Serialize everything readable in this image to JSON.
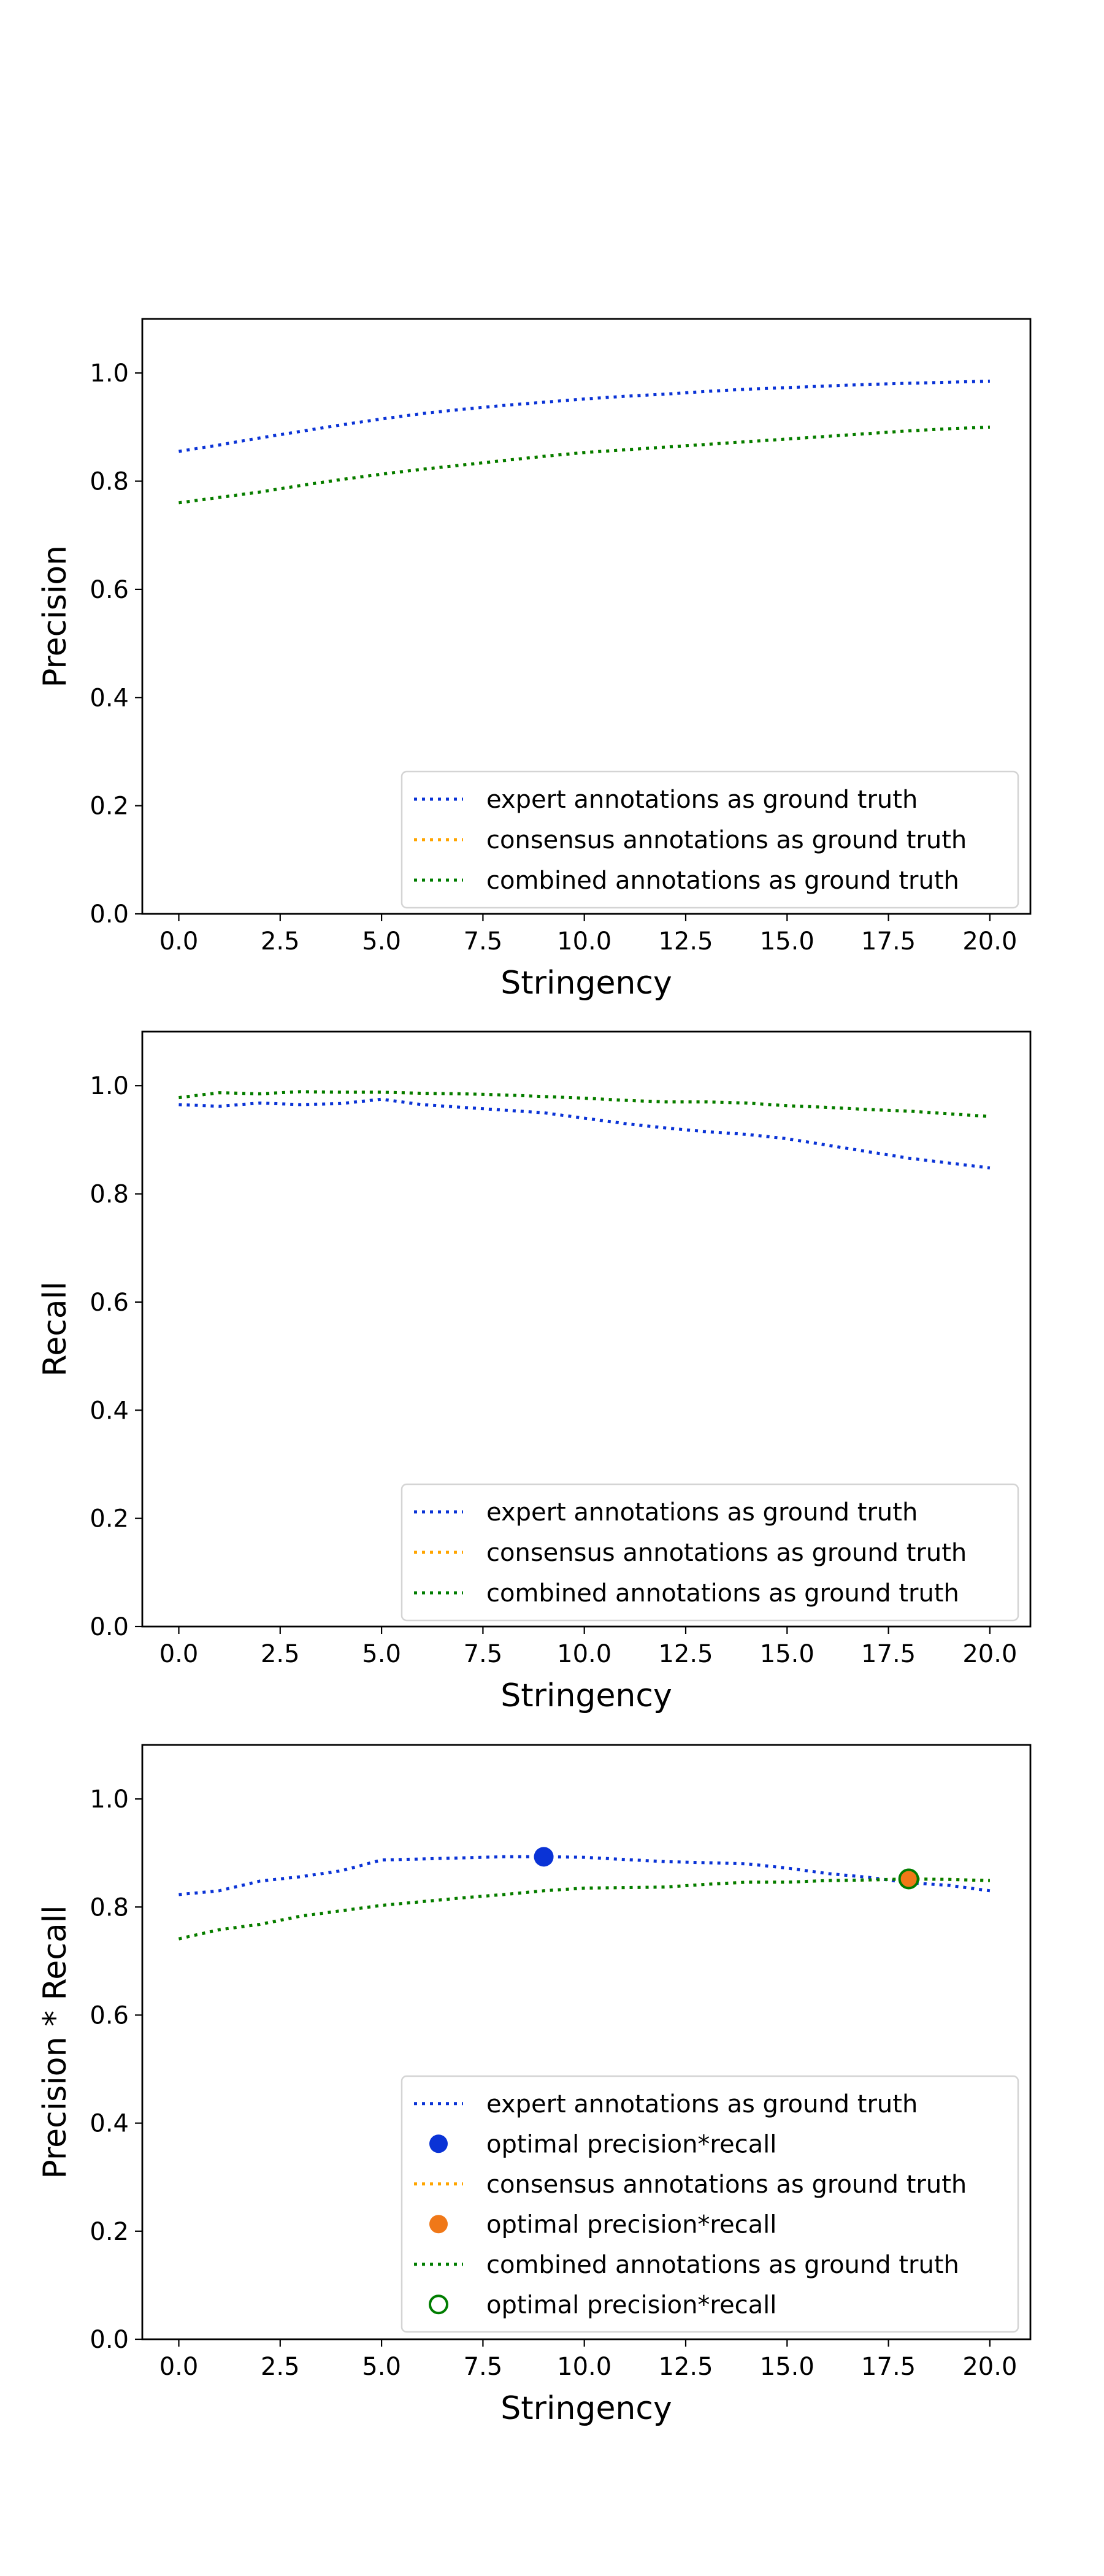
{
  "chart_data": [
    {
      "type": "line",
      "xlabel": "Stringency",
      "ylabel": "Precision",
      "xlim": [
        -0.9,
        21
      ],
      "ylim": [
        0,
        1.1
      ],
      "xticks": [
        "0.0",
        "2.5",
        "5.0",
        "7.5",
        "10.0",
        "12.5",
        "15.0",
        "17.5",
        "20.0"
      ],
      "yticks": [
        "0.0",
        "0.2",
        "0.4",
        "0.6",
        "0.8",
        "1.0"
      ],
      "grid": false,
      "legend_position": "lower-right",
      "x": [
        0,
        1,
        2,
        3,
        4,
        5,
        6,
        7,
        8,
        9,
        10,
        11,
        12,
        13,
        14,
        15,
        16,
        17,
        18,
        19,
        20
      ],
      "series": [
        {
          "name": "expert annotations as ground truth",
          "color": "#0a33d6",
          "style": "dotted",
          "values": [
            0.855,
            0.867,
            0.88,
            0.892,
            0.904,
            0.915,
            0.925,
            0.933,
            0.94,
            0.946,
            0.952,
            0.957,
            0.961,
            0.966,
            0.97,
            0.973,
            0.976,
            0.979,
            0.981,
            0.983,
            0.985
          ]
        },
        {
          "name": "consensus annotations as ground truth",
          "color": "#ffa500",
          "style": "dotted",
          "values": [
            0.76,
            0.77,
            0.78,
            0.792,
            0.803,
            0.813,
            0.822,
            0.83,
            0.838,
            0.846,
            0.853,
            0.858,
            0.863,
            0.868,
            0.873,
            0.878,
            0.883,
            0.888,
            0.893,
            0.897,
            0.9
          ]
        },
        {
          "name": "combined annotations as ground truth",
          "color": "#007d00",
          "style": "dotted",
          "values": [
            0.76,
            0.77,
            0.78,
            0.792,
            0.803,
            0.813,
            0.822,
            0.83,
            0.838,
            0.846,
            0.853,
            0.858,
            0.863,
            0.868,
            0.873,
            0.878,
            0.883,
            0.888,
            0.893,
            0.897,
            0.9
          ]
        }
      ]
    },
    {
      "type": "line",
      "xlabel": "Stringency",
      "ylabel": "Recall",
      "xlim": [
        -0.9,
        21
      ],
      "ylim": [
        0,
        1.1
      ],
      "xticks": [
        "0.0",
        "2.5",
        "5.0",
        "7.5",
        "10.0",
        "12.5",
        "15.0",
        "17.5",
        "20.0"
      ],
      "yticks": [
        "0.0",
        "0.2",
        "0.4",
        "0.6",
        "0.8",
        "1.0"
      ],
      "grid": false,
      "legend_position": "lower-right",
      "x": [
        0,
        1,
        2,
        3,
        4,
        5,
        6,
        7,
        8,
        9,
        10,
        11,
        12,
        13,
        14,
        15,
        16,
        17,
        18,
        19,
        20
      ],
      "series": [
        {
          "name": "expert annotations as ground truth",
          "color": "#0a33d6",
          "style": "dotted",
          "values": [
            0.965,
            0.962,
            0.968,
            0.965,
            0.967,
            0.975,
            0.965,
            0.96,
            0.955,
            0.95,
            0.94,
            0.93,
            0.922,
            0.915,
            0.91,
            0.902,
            0.89,
            0.878,
            0.866,
            0.857,
            0.848
          ]
        },
        {
          "name": "consensus annotations as ground truth",
          "color": "#ffa500",
          "style": "dotted",
          "values": [
            0.978,
            0.987,
            0.985,
            0.989,
            0.988,
            0.988,
            0.986,
            0.985,
            0.983,
            0.98,
            0.977,
            0.973,
            0.97,
            0.97,
            0.968,
            0.963,
            0.96,
            0.956,
            0.953,
            0.948,
            0.943
          ]
        },
        {
          "name": "combined annotations as ground truth",
          "color": "#007d00",
          "style": "dotted",
          "values": [
            0.978,
            0.987,
            0.985,
            0.989,
            0.988,
            0.988,
            0.986,
            0.985,
            0.983,
            0.98,
            0.977,
            0.973,
            0.97,
            0.97,
            0.968,
            0.963,
            0.96,
            0.956,
            0.953,
            0.948,
            0.943
          ]
        }
      ]
    },
    {
      "type": "line",
      "xlabel": "Stringency",
      "ylabel": "Precision * Recall",
      "xlim": [
        -0.9,
        21
      ],
      "ylim": [
        0,
        1.1
      ],
      "xticks": [
        "0.0",
        "2.5",
        "5.0",
        "7.5",
        "10.0",
        "12.5",
        "15.0",
        "17.5",
        "20.0"
      ],
      "yticks": [
        "0.0",
        "0.2",
        "0.4",
        "0.6",
        "0.8",
        "1.0"
      ],
      "grid": false,
      "legend_position": "lower-right",
      "x": [
        0,
        1,
        2,
        3,
        4,
        5,
        6,
        7,
        8,
        9,
        10,
        11,
        12,
        13,
        14,
        15,
        16,
        17,
        18,
        19,
        20
      ],
      "series": [
        {
          "name": "expert annotations as ground truth",
          "color": "#0a33d6",
          "style": "dotted",
          "values": [
            0.823,
            0.83,
            0.848,
            0.856,
            0.867,
            0.887,
            0.889,
            0.891,
            0.893,
            0.893,
            0.892,
            0.888,
            0.884,
            0.882,
            0.88,
            0.872,
            0.862,
            0.855,
            0.845,
            0.84,
            0.83
          ],
          "optimum": {
            "x": 9,
            "y": 0.893,
            "label": "optimal precision*recall",
            "marker": "filled"
          }
        },
        {
          "name": "consensus annotations as ground truth",
          "color": "#ffa500",
          "style": "dotted",
          "values": [
            0.741,
            0.758,
            0.768,
            0.783,
            0.793,
            0.803,
            0.81,
            0.817,
            0.823,
            0.83,
            0.835,
            0.836,
            0.837,
            0.842,
            0.846,
            0.846,
            0.849,
            0.85,
            0.852,
            0.851,
            0.849
          ],
          "optimum": {
            "x": 18,
            "y": 0.852,
            "label": "optimal precision*recall",
            "marker": "filled",
            "color": "#f07818"
          }
        },
        {
          "name": "combined annotations as ground truth",
          "color": "#007d00",
          "style": "dotted",
          "values": [
            0.741,
            0.758,
            0.768,
            0.783,
            0.793,
            0.803,
            0.81,
            0.817,
            0.823,
            0.83,
            0.835,
            0.836,
            0.837,
            0.842,
            0.846,
            0.846,
            0.849,
            0.85,
            0.852,
            0.851,
            0.849
          ],
          "optimum": {
            "x": 18,
            "y": 0.852,
            "label": "optimal precision*recall",
            "marker": "open"
          }
        }
      ]
    }
  ]
}
